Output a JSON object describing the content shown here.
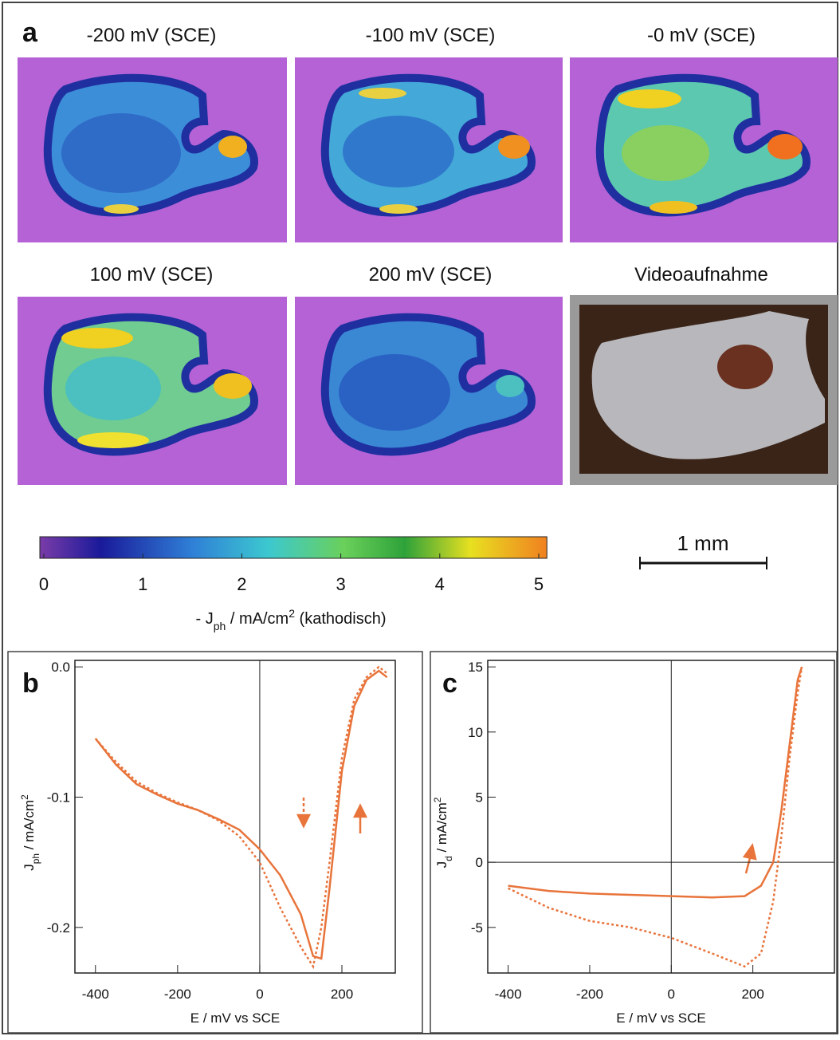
{
  "panel_a": {
    "label": "a",
    "titles": [
      "-200 mV  (SCE)",
      "-100 mV  (SCE)",
      "-0 mV  (SCE)",
      "100 mV  (SCE)",
      "200 mV  (SCE)",
      "Videoaufnahme"
    ],
    "colorbar": {
      "clim": [
        0,
        5.05
      ],
      "ticks": [
        0,
        1,
        2,
        3,
        4,
        5
      ],
      "label": [
        "- J",
        "ph",
        "  /  mA/cm",
        "2",
        "  (kathodisch)"
      ]
    },
    "scalebar": "1 mm"
  },
  "chart_data": [
    {
      "type": "line",
      "panel": "b",
      "xlabel": "E / mV  vs SCE",
      "ylabel": [
        "J",
        "ph",
        " / mA/cm",
        "2"
      ],
      "xlim": [
        -450,
        330
      ],
      "ylim": [
        -0.235,
        0.005
      ],
      "xticks": [
        -400,
        -200,
        0,
        200
      ],
      "yticks": [
        {
          "value": 0,
          "label": "0.0"
        },
        -0.1,
        -0.2
      ],
      "x": [
        -400,
        -350,
        -300,
        -250,
        -200,
        -150,
        -100,
        -50,
        0,
        50,
        100,
        130,
        150,
        170,
        200,
        230,
        260,
        290,
        310
      ],
      "series": [
        {
          "color": "#e8743b",
          "dashed": false,
          "values": [
            -0.055,
            -0.075,
            -0.09,
            -0.098,
            -0.105,
            -0.11,
            -0.117,
            -0.125,
            -0.14,
            -0.16,
            -0.19,
            -0.222,
            -0.224,
            -0.17,
            -0.08,
            -0.03,
            -0.01,
            -0.003,
            -0.008
          ]
        },
        {
          "color": "#e8743b",
          "dashed": true,
          "values": [
            -0.055,
            -0.073,
            -0.088,
            -0.097,
            -0.104,
            -0.11,
            -0.118,
            -0.13,
            -0.15,
            -0.185,
            -0.215,
            -0.23,
            -0.2,
            -0.15,
            -0.07,
            -0.025,
            -0.008,
            0.0,
            -0.005
          ]
        }
      ]
    },
    {
      "type": "line",
      "panel": "c",
      "xlabel": "E / mV  vs SCE",
      "ylabel": [
        "J",
        "d",
        " / mA/cm",
        "2"
      ],
      "xlim": [
        -450,
        400
      ],
      "ylim": [
        -8.5,
        15.5
      ],
      "xticks": [
        -400,
        -200,
        0,
        200
      ],
      "yticks": [
        -5,
        0,
        5,
        10,
        15
      ],
      "x": [
        -400,
        -300,
        -200,
        -100,
        0,
        100,
        180,
        220,
        250,
        270,
        290,
        310,
        320
      ],
      "series": [
        {
          "color": "#e8743b",
          "dashed": false,
          "values": [
            -1.8,
            -2.2,
            -2.4,
            -2.5,
            -2.6,
            -2.7,
            -2.6,
            -1.8,
            0,
            4,
            9,
            14,
            15
          ]
        },
        {
          "color": "#e8743b",
          "dashed": true,
          "values": [
            -2,
            -3.5,
            -4.5,
            -5,
            -5.8,
            -7,
            -8,
            -7,
            -3,
            2,
            8,
            13,
            15
          ]
        }
      ]
    }
  ]
}
